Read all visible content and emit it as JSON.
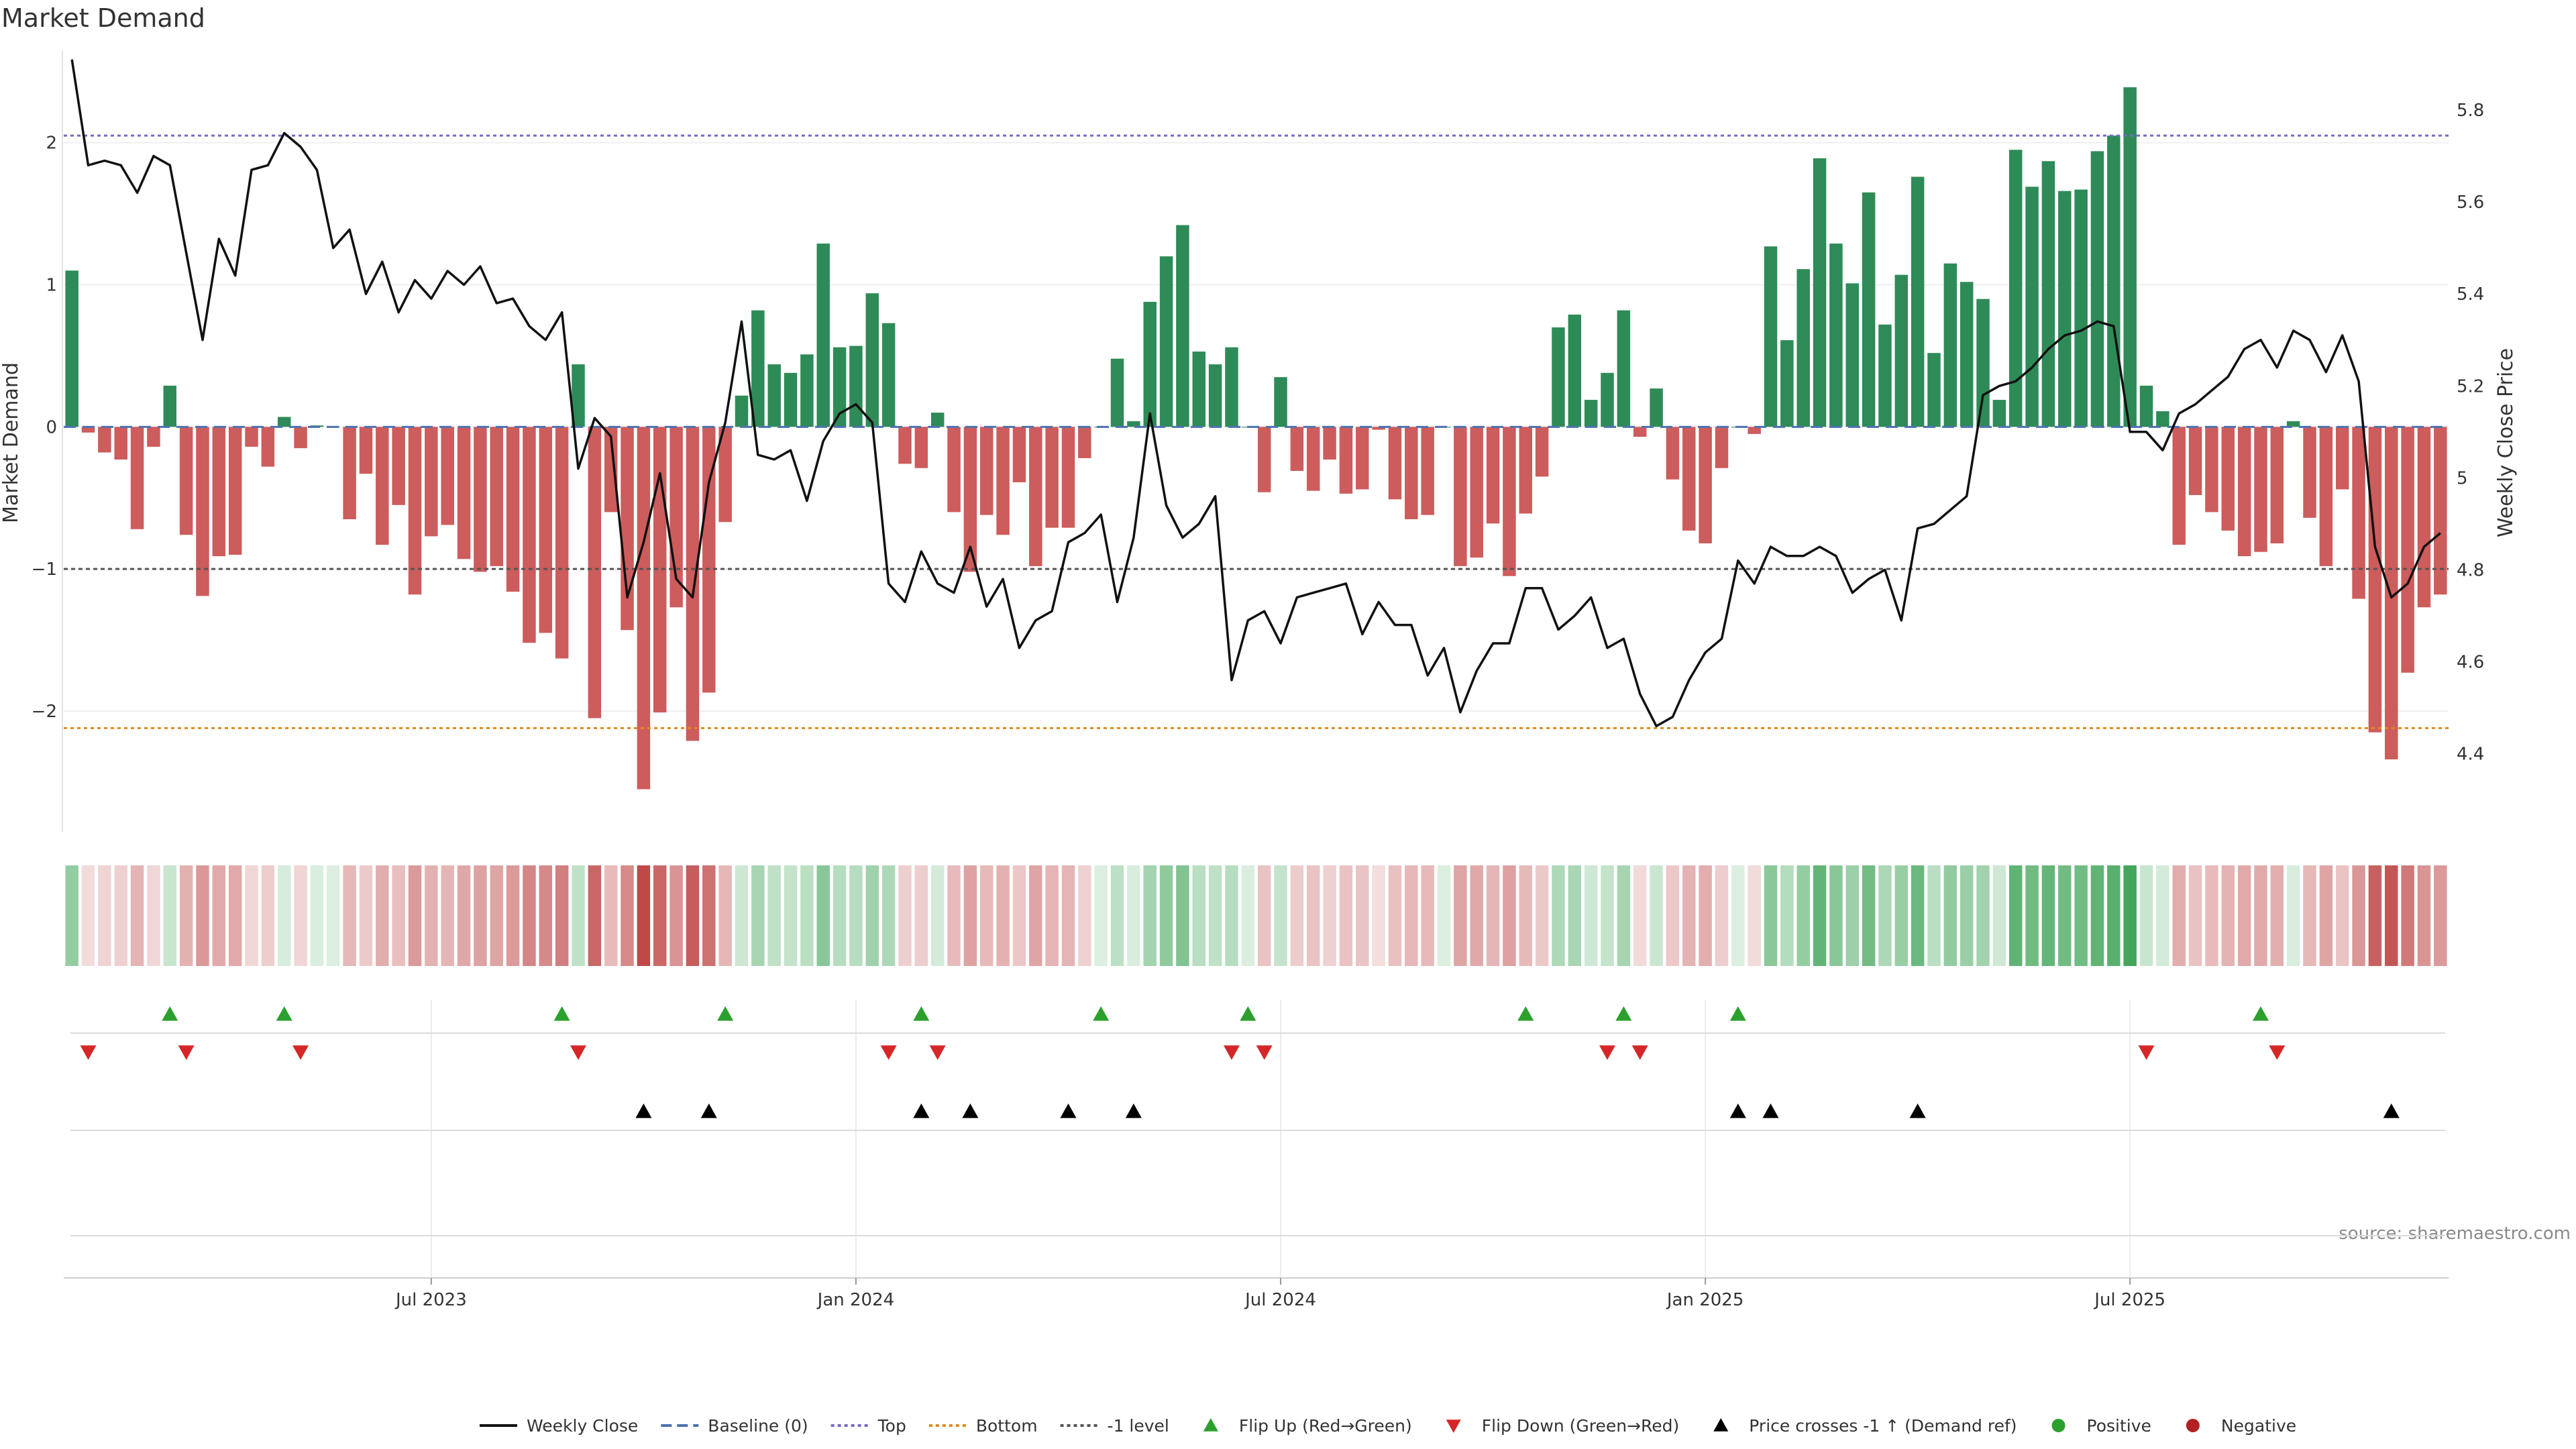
{
  "chart_data": {
    "type": "bar",
    "title": "Market Demand",
    "ylabel_left": "Market Demand",
    "ylabel_right": "Weekly Close Price",
    "source": "source: sharemaestro.com",
    "ylim_left": [
      -2.85,
      2.65
    ],
    "ylim_right": [
      4.23,
      5.93
    ],
    "yticks_left": [
      {
        "v": 2,
        "label": "2"
      },
      {
        "v": 1,
        "label": "1"
      },
      {
        "v": 0,
        "label": "0"
      },
      {
        "v": -1,
        "label": "−1"
      },
      {
        "v": -2,
        "label": "−2"
      }
    ],
    "yticks_right": [
      {
        "v": 5.8,
        "label": "5.8"
      },
      {
        "v": 5.6,
        "label": "5.6"
      },
      {
        "v": 5.4,
        "label": "5.4"
      },
      {
        "v": 5.2,
        "label": "5.2"
      },
      {
        "v": 5.0,
        "label": "5"
      },
      {
        "v": 4.8,
        "label": "4.8"
      },
      {
        "v": 4.6,
        "label": "4.6"
      },
      {
        "v": 4.4,
        "label": "4.4"
      }
    ],
    "xticks": [
      {
        "week": 22,
        "label": "Jul 2023"
      },
      {
        "week": 48,
        "label": "Jan 2024"
      },
      {
        "week": 74,
        "label": "Jul 2024"
      },
      {
        "week": 100,
        "label": "Jan 2025"
      },
      {
        "week": 126,
        "label": "Jul 2025"
      }
    ],
    "reference_lines": {
      "top": 2.05,
      "bottom": -2.12,
      "minus_one": -1.0
    },
    "demand": [
      1.1,
      -0.04,
      -0.18,
      -0.23,
      -0.72,
      -0.14,
      0.29,
      -0.76,
      -1.19,
      -0.91,
      -0.9,
      -0.14,
      -0.28,
      0.07,
      -0.15,
      0.01,
      0.0,
      -0.65,
      -0.33,
      -0.83,
      -0.55,
      -1.18,
      -0.77,
      -0.69,
      -0.93,
      -1.02,
      -0.98,
      -1.16,
      -1.52,
      -1.45,
      -1.63,
      0.44,
      -2.05,
      -0.6,
      -1.43,
      -2.55,
      -2.01,
      -1.27,
      -2.21,
      -1.87,
      -0.67,
      0.22,
      0.82,
      0.44,
      0.38,
      0.51,
      1.29,
      0.56,
      0.57,
      0.94,
      0.73,
      -0.26,
      -0.29,
      0.1,
      -0.6,
      -1.02,
      -0.62,
      -0.76,
      -0.39,
      -0.98,
      -0.71,
      -0.71,
      -0.22,
      0.0,
      0.48,
      0.04,
      0.88,
      1.2,
      1.42,
      0.53,
      0.44,
      0.56,
      0.0,
      -0.46,
      0.35,
      -0.31,
      -0.45,
      -0.23,
      -0.47,
      -0.44,
      -0.02,
      -0.51,
      -0.65,
      -0.62,
      0.0,
      -0.98,
      -0.92,
      -0.68,
      -1.05,
      -0.61,
      -0.35,
      0.7,
      0.79,
      0.19,
      0.38,
      0.82,
      -0.07,
      0.27,
      -0.37,
      -0.73,
      -0.82,
      -0.29,
      0.0,
      -0.05,
      1.27,
      0.61,
      1.11,
      1.89,
      1.29,
      1.01,
      1.65,
      0.72,
      1.07,
      1.76,
      0.52,
      1.15,
      1.02,
      0.9,
      0.19,
      1.95,
      1.69,
      1.87,
      1.66,
      1.67,
      1.94,
      2.05,
      2.39,
      0.29,
      0.11,
      -0.83,
      -0.48,
      -0.6,
      -0.73,
      -0.91,
      -0.88,
      -0.82,
      0.04,
      -0.64,
      -0.98,
      -0.44,
      -1.21,
      -2.15,
      -2.34,
      -1.73,
      -1.27,
      -1.18
    ],
    "close": [
      5.91,
      5.68,
      5.69,
      5.68,
      5.62,
      5.7,
      5.68,
      5.49,
      5.3,
      5.52,
      5.44,
      5.67,
      5.68,
      5.75,
      5.72,
      5.67,
      5.5,
      5.54,
      5.4,
      5.47,
      5.36,
      5.43,
      5.39,
      5.45,
      5.42,
      5.46,
      5.38,
      5.39,
      5.33,
      5.3,
      5.36,
      5.02,
      5.13,
      5.09,
      4.74,
      4.86,
      5.01,
      4.78,
      4.74,
      4.99,
      5.12,
      5.34,
      5.05,
      5.04,
      5.06,
      4.95,
      5.08,
      5.14,
      5.16,
      5.12,
      4.77,
      4.73,
      4.84,
      4.77,
      4.75,
      4.85,
      4.72,
      4.78,
      4.63,
      4.69,
      4.71,
      4.86,
      4.88,
      4.92,
      4.73,
      4.87,
      5.14,
      4.94,
      4.87,
      4.9,
      4.96,
      4.56,
      4.69,
      4.71,
      4.64,
      4.74,
      4.75,
      4.76,
      4.77,
      4.66,
      4.73,
      4.68,
      4.68,
      4.57,
      4.63,
      4.49,
      4.58,
      4.64,
      4.64,
      4.76,
      4.76,
      4.67,
      4.7,
      4.74,
      4.63,
      4.65,
      4.53,
      4.46,
      4.48,
      4.56,
      4.62,
      4.65,
      4.82,
      4.77,
      4.85,
      4.83,
      4.83,
      4.85,
      4.83,
      4.75,
      4.78,
      4.8,
      4.69,
      4.89,
      4.9,
      4.93,
      4.96,
      5.18,
      5.2,
      5.21,
      5.24,
      5.28,
      5.31,
      5.32,
      5.34,
      5.33,
      5.1,
      5.1,
      5.06,
      5.14,
      5.16,
      5.19,
      5.22,
      5.28,
      5.3,
      5.24,
      5.32,
      5.3,
      5.23,
      5.31,
      5.21,
      4.85,
      4.74,
      4.77,
      4.85,
      4.88
    ],
    "flip_up_weeks": [
      6,
      13,
      30,
      40,
      52,
      63,
      72,
      89,
      95,
      102,
      134
    ],
    "flip_down_weeks": [
      1,
      7,
      14,
      31,
      50,
      53,
      71,
      73,
      94,
      96,
      127,
      135
    ],
    "price_cross_weeks": [
      35,
      39,
      52,
      55,
      61,
      65,
      102,
      104,
      113,
      142
    ]
  },
  "legend": [
    {
      "label": "Weekly Close",
      "kind": "line",
      "color": "#111111"
    },
    {
      "label": "Baseline (0)",
      "kind": "dash",
      "color": "#4c72b0"
    },
    {
      "label": "Top",
      "kind": "dot",
      "color": "#7b68c8"
    },
    {
      "label": "Bottom",
      "kind": "dot",
      "color": "#e08a1e"
    },
    {
      "label": "-1 level",
      "kind": "dot",
      "color": "#555555"
    },
    {
      "label": "Flip Up (Red→Green)",
      "kind": "tri-up",
      "color": "#2ca02c"
    },
    {
      "label": "Flip Down (Green→Red)",
      "kind": "tri-down",
      "color": "#d62728"
    },
    {
      "label": "Price crosses -1 ↑ (Demand ref)",
      "kind": "tri-up",
      "color": "#000000"
    },
    {
      "label": "Positive",
      "kind": "dot-marker",
      "color": "#2ca02c"
    },
    {
      "label": "Negative",
      "kind": "dot-marker",
      "color": "#b22222"
    }
  ],
  "colors": {
    "positive": "#2e8b57",
    "negative": "#cd5c5c",
    "price": "#111111"
  }
}
